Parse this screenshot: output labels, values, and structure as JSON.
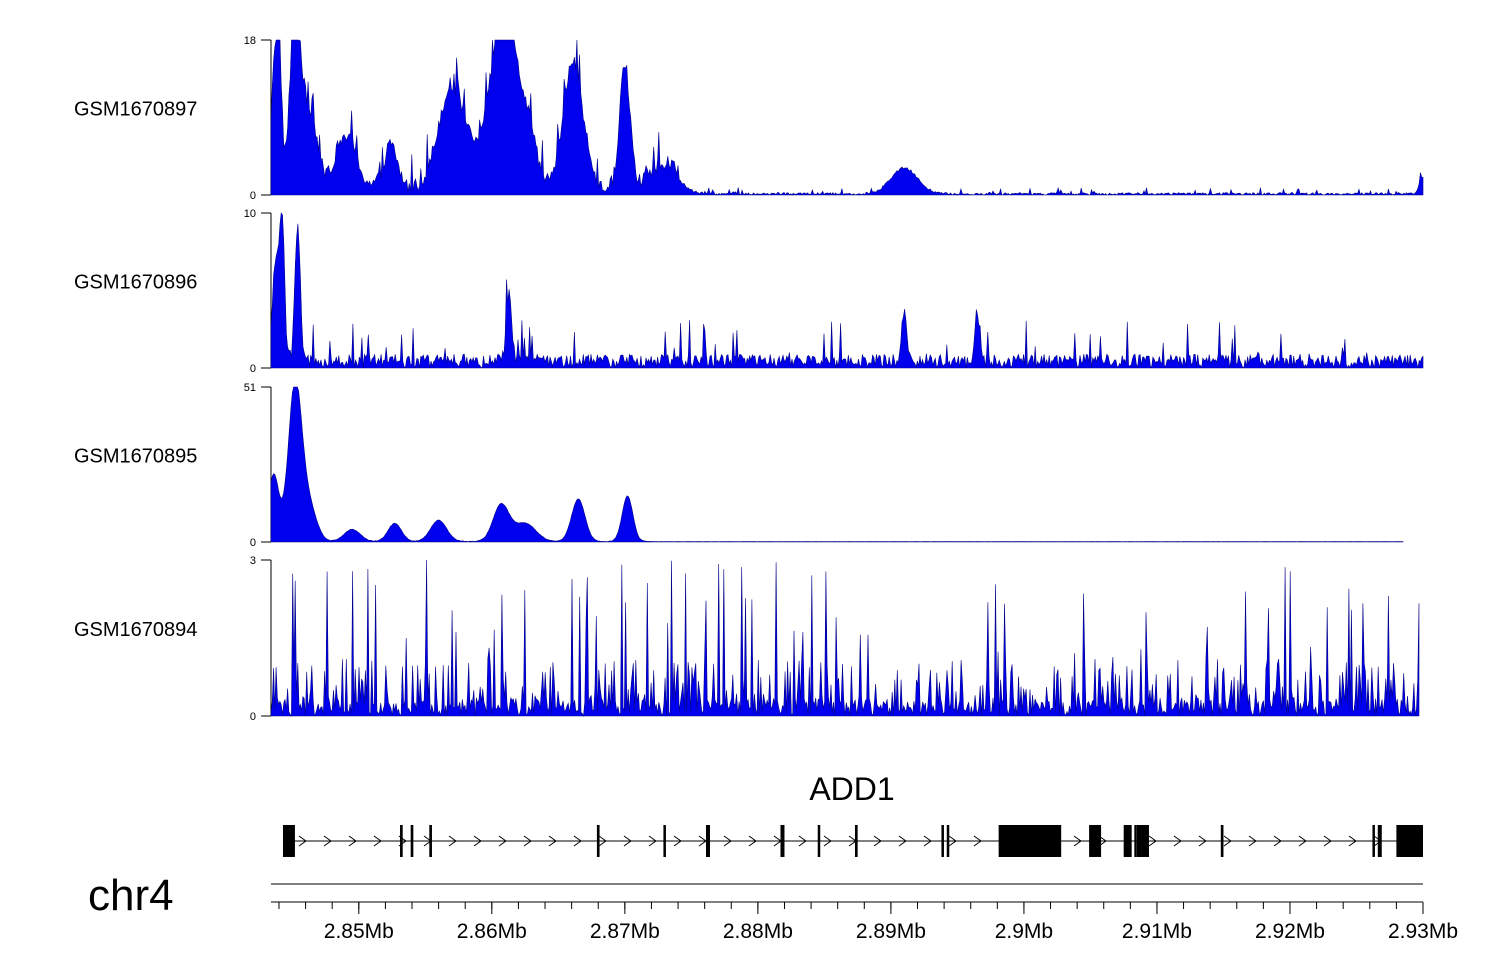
{
  "chart_data": {
    "type": "area",
    "chromosome": "chr4",
    "x_unit": "Mb",
    "xlim": [
      2.8434,
      2.93
    ],
    "x_tick_values": [
      2.85,
      2.86,
      2.87,
      2.88,
      2.89,
      2.9,
      2.91,
      2.92,
      2.93
    ],
    "x_tick_labels": [
      "2.85Mb",
      "2.86Mb",
      "2.87Mb",
      "2.88Mb",
      "2.89Mb",
      "2.9Mb",
      "2.91Mb",
      "2.92Mb",
      "2.93Mb"
    ],
    "track_color": "#0000ee",
    "tracks": [
      {
        "name": "GSM1670897",
        "ylim": [
          0,
          18
        ],
        "ymin_label": "0",
        "ymax_label": "18",
        "profile": "peaky",
        "peaks": [
          {
            "x": 2.8436,
            "y": 13,
            "w": 0.0002
          },
          {
            "x": 2.844,
            "y": 17,
            "w": 0.0002
          },
          {
            "x": 2.8452,
            "y": 18,
            "w": 0.0004
          },
          {
            "x": 2.8462,
            "y": 9,
            "w": 0.0006
          },
          {
            "x": 2.849,
            "y": 6,
            "w": 0.0008
          },
          {
            "x": 2.8524,
            "y": 5,
            "w": 0.0005
          },
          {
            "x": 2.857,
            "y": 12,
            "w": 0.001
          },
          {
            "x": 2.86,
            "y": 10,
            "w": 0.0008
          },
          {
            "x": 2.861,
            "y": 16,
            "w": 0.0006
          },
          {
            "x": 2.8623,
            "y": 10,
            "w": 0.0008
          },
          {
            "x": 2.8661,
            "y": 15,
            "w": 0.0007
          },
          {
            "x": 2.87,
            "y": 14,
            "w": 0.0004
          },
          {
            "x": 2.873,
            "y": 3,
            "w": 0.001
          },
          {
            "x": 2.891,
            "y": 3,
            "w": 0.001
          },
          {
            "x": 2.9299,
            "y": 2,
            "w": 0.0002
          }
        ],
        "baseline": 0.6,
        "noise": 0.8,
        "decay_after": 2.874
      },
      {
        "name": "GSM1670896",
        "ylim": [
          0,
          10
        ],
        "ymin_label": "0",
        "ymax_label": "10",
        "profile": "noisy",
        "peaks": [
          {
            "x": 2.8437,
            "y": 6,
            "w": 0.0002
          },
          {
            "x": 2.8442,
            "y": 10,
            "w": 0.0002
          },
          {
            "x": 2.8454,
            "y": 9,
            "w": 0.0002
          },
          {
            "x": 2.8613,
            "y": 4.5,
            "w": 0.0002
          },
          {
            "x": 2.891,
            "y": 3.2,
            "w": 0.0002
          },
          {
            "x": 2.8965,
            "y": 3.2,
            "w": 0.0002
          }
        ],
        "baseline": 0.5,
        "noise": 1.8
      },
      {
        "name": "GSM1670895",
        "ylim": [
          0,
          51
        ],
        "ymin_label": "0",
        "ymax_label": "51",
        "profile": "smooth",
        "peaks": [
          {
            "x": 2.8436,
            "y": 22,
            "w": 0.0004
          },
          {
            "x": 2.8452,
            "y": 51,
            "w": 0.0005
          },
          {
            "x": 2.8462,
            "y": 12,
            "w": 0.0006
          },
          {
            "x": 2.8495,
            "y": 4,
            "w": 0.0006
          },
          {
            "x": 2.8527,
            "y": 6,
            "w": 0.0005
          },
          {
            "x": 2.856,
            "y": 7,
            "w": 0.0006
          },
          {
            "x": 2.8607,
            "y": 12,
            "w": 0.0006
          },
          {
            "x": 2.8625,
            "y": 6,
            "w": 0.0008
          },
          {
            "x": 2.8665,
            "y": 14,
            "w": 0.0005
          },
          {
            "x": 2.8702,
            "y": 15,
            "w": 0.0004
          }
        ],
        "baseline": 0.3,
        "noise": 0.4,
        "decay_after": 2.872,
        "x_end": 2.9285
      },
      {
        "name": "GSM1670894",
        "ylim": [
          0,
          3
        ],
        "ymin_label": "0",
        "ymax_label": "3",
        "profile": "spiky",
        "peaks": [],
        "baseline": 0.2,
        "noise": 2.8,
        "x_end": 2.9297
      }
    ],
    "gene": {
      "name": "ADD1",
      "strand": "+",
      "start": 2.8443,
      "end": 2.93,
      "exons": [
        {
          "start": 2.8443,
          "end": 2.8452
        },
        {
          "start": 2.8531,
          "end": 2.8533
        },
        {
          "start": 2.8539,
          "end": 2.8541
        },
        {
          "start": 2.8553,
          "end": 2.8555
        },
        {
          "start": 2.8679,
          "end": 2.8681
        },
        {
          "start": 2.8729,
          "end": 2.873
        },
        {
          "start": 2.8761,
          "end": 2.8764
        },
        {
          "start": 2.8817,
          "end": 2.882
        },
        {
          "start": 2.8845,
          "end": 2.8846
        },
        {
          "start": 2.8873,
          "end": 2.8875
        },
        {
          "start": 2.8938,
          "end": 2.8939
        },
        {
          "start": 2.8942,
          "end": 2.8943
        },
        {
          "start": 2.8981,
          "end": 2.9028
        },
        {
          "start": 2.9049,
          "end": 2.9058
        },
        {
          "start": 2.9075,
          "end": 2.9081
        },
        {
          "start": 2.9083,
          "end": 2.9084
        },
        {
          "start": 2.9085,
          "end": 2.9094
        },
        {
          "start": 2.9148,
          "end": 2.915
        },
        {
          "start": 2.9262,
          "end": 2.9263
        },
        {
          "start": 2.9266,
          "end": 2.9269
        },
        {
          "start": 2.928,
          "end": 2.93
        }
      ]
    }
  }
}
